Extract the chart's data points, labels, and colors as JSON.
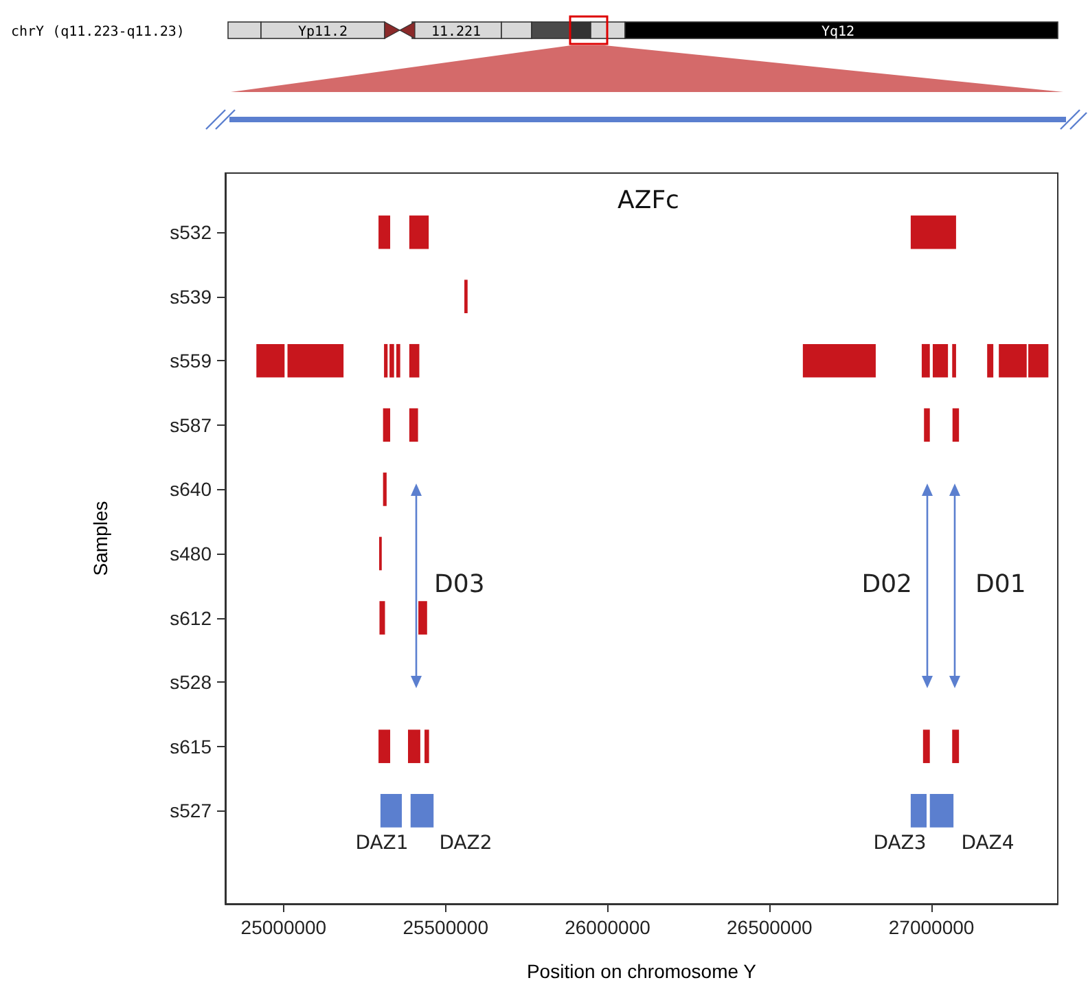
{
  "chart_data": {
    "type": "bar",
    "orientation": "horizontal",
    "title": "AZFc",
    "xlabel": "Position on chromosome Y",
    "ylabel": "Samples",
    "categories": [
      "s532",
      "s539",
      "s559",
      "s587",
      "s640",
      "s480",
      "s612",
      "s528",
      "s615",
      "s527"
    ],
    "xlim": [
      24820000,
      27390000
    ],
    "xticks": [
      25000000,
      25500000,
      26000000,
      26500000,
      27000000
    ],
    "grid": false,
    "series": [
      {
        "base": [
          25293000,
          25558000,
          24916000,
          25307000,
          25307000,
          25295000,
          25296000,
          null,
          25293000,
          25299000
        ],
        "values": [
          36000,
          10000,
          87000,
          22000,
          11000,
          8000,
          17000,
          null,
          36000,
          66000
        ],
        "colors": [
          "#c8161d",
          "#c8161d",
          "#c8161d",
          "#c8161d",
          "#c8161d",
          "#c8161d",
          "#c8161d",
          null,
          "#c8161d",
          "#5b7fcf"
        ]
      },
      {
        "base": [
          25388000,
          null,
          25012000,
          25388000,
          null,
          null,
          25416000,
          null,
          25384000,
          25392000
        ],
        "values": [
          60000,
          null,
          173000,
          27000,
          null,
          null,
          27000,
          null,
          38000,
          71000
        ],
        "colors": [
          "#c8161d",
          null,
          "#c8161d",
          "#c8161d",
          null,
          null,
          "#c8161d",
          null,
          "#c8161d",
          "#5b7fcf"
        ]
      },
      {
        "base": [
          26936000,
          null,
          25310000,
          26977000,
          null,
          null,
          null,
          null,
          25435000,
          26936000
        ],
        "values": [
          140000,
          null,
          11000,
          18000,
          null,
          null,
          null,
          null,
          14000,
          49000
        ],
        "colors": [
          "#c8161d",
          null,
          "#c8161d",
          "#c8161d",
          null,
          null,
          null,
          null,
          "#c8161d",
          "#5b7fcf"
        ]
      },
      {
        "base": [
          null,
          null,
          25327000,
          27065000,
          null,
          null,
          null,
          null,
          26974000,
          26995000
        ],
        "values": [
          null,
          null,
          14000,
          20000,
          null,
          null,
          null,
          null,
          21000,
          73000
        ],
        "colors": [
          null,
          null,
          "#c8161d",
          "#c8161d",
          null,
          null,
          null,
          null,
          "#c8161d",
          "#5b7fcf"
        ]
      },
      {
        "base": [
          null,
          null,
          25348000,
          null,
          null,
          null,
          null,
          null,
          27064000,
          null
        ],
        "values": [
          null,
          null,
          12000,
          null,
          null,
          null,
          null,
          null,
          21000,
          null
        ],
        "colors": [
          null,
          null,
          "#c8161d",
          null,
          null,
          null,
          null,
          null,
          "#c8161d",
          null
        ]
      },
      {
        "base": [
          null,
          null,
          25388000,
          null,
          null,
          null,
          null,
          null,
          null,
          null
        ],
        "values": [
          null,
          null,
          31000,
          null,
          null,
          null,
          null,
          null,
          null,
          null
        ],
        "color": "#c8161d"
      },
      {
        "base": [
          null,
          null,
          26603000,
          null,
          null,
          null,
          null,
          null,
          null,
          null
        ],
        "values": [
          null,
          null,
          225000,
          null,
          null,
          null,
          null,
          null,
          null,
          null
        ],
        "color": "#c8161d"
      },
      {
        "base": [
          null,
          null,
          26970000,
          null,
          null,
          null,
          null,
          null,
          null,
          null
        ],
        "values": [
          null,
          null,
          25000,
          null,
          null,
          null,
          null,
          null,
          null,
          null
        ],
        "color": "#c8161d"
      },
      {
        "base": [
          null,
          null,
          27004000,
          null,
          null,
          null,
          null,
          null,
          null,
          null
        ],
        "values": [
          null,
          null,
          47000,
          null,
          null,
          null,
          null,
          null,
          null,
          null
        ],
        "color": "#c8161d"
      },
      {
        "base": [
          null,
          null,
          27064000,
          null,
          null,
          null,
          null,
          null,
          null,
          null
        ],
        "values": [
          null,
          null,
          12000,
          null,
          null,
          null,
          null,
          null,
          null,
          null
        ],
        "color": "#c8161d"
      },
      {
        "base": [
          null,
          null,
          27172000,
          null,
          null,
          null,
          null,
          null,
          null,
          null
        ],
        "values": [
          null,
          null,
          19000,
          null,
          null,
          null,
          null,
          null,
          null,
          null
        ],
        "color": "#c8161d"
      },
      {
        "base": [
          null,
          null,
          27208000,
          null,
          null,
          null,
          null,
          null,
          null,
          null
        ],
        "values": [
          null,
          null,
          86000,
          null,
          null,
          null,
          null,
          null,
          null,
          null
        ],
        "color": "#c8161d"
      },
      {
        "base": [
          null,
          null,
          27299000,
          null,
          null,
          null,
          null,
          null,
          null,
          null
        ],
        "values": [
          null,
          null,
          62000,
          null,
          null,
          null,
          null,
          null,
          null,
          null
        ],
        "color": "#c8161d"
      }
    ],
    "annotations": [
      "chrY (q11.223-q11.23)",
      "Yp11.2",
      "11.221",
      "Yq12",
      "D03",
      "D02",
      "D01",
      "DAZ1",
      "DAZ2",
      "DAZ3",
      "DAZ4"
    ]
  }
}
